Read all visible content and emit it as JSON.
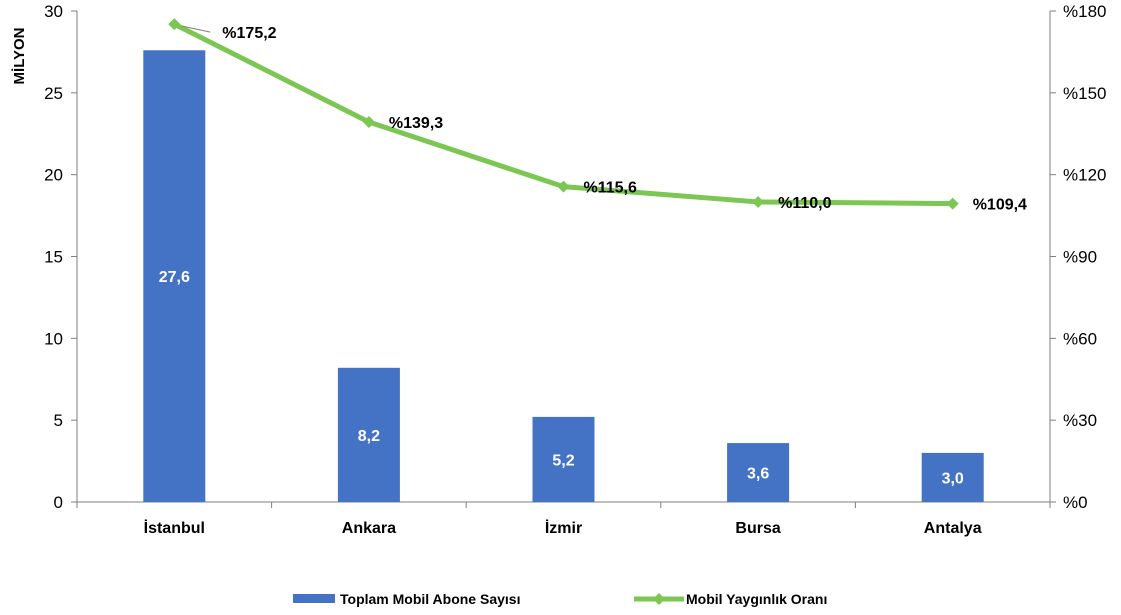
{
  "chart_data": {
    "type": "bar",
    "title": "",
    "xlabel": "",
    "ylabel": "MİLYON",
    "ylabel_right": "",
    "categories": [
      "İstanbul",
      "Ankara",
      "İzmir",
      "Bursa",
      "Antalya"
    ],
    "ylim": [
      0,
      30
    ],
    "y2lim": [
      0,
      180
    ],
    "yticks": [
      "0",
      "5",
      "10",
      "15",
      "20",
      "25",
      "30"
    ],
    "y2ticks": [
      "%0",
      "%30",
      "%60",
      "%90",
      "%120",
      "%150",
      "%180"
    ],
    "grid": false,
    "legend_position": "bottom-center",
    "series": [
      {
        "name": "Toplam Mobil Abone Sayısı",
        "type": "bar",
        "axis": "left",
        "color": "#4472C4",
        "values": [
          27.6,
          8.2,
          5.2,
          3.6,
          3.0
        ],
        "labels": [
          "27,6",
          "8,2",
          "5,2",
          "3,6",
          "3,0"
        ]
      },
      {
        "name": "Mobil Yaygınlık Oranı",
        "type": "line",
        "axis": "right",
        "color": "#7CC653",
        "values": [
          175.2,
          139.3,
          115.6,
          110.0,
          109.4
        ],
        "labels": [
          "%175,2",
          "%139,3",
          "%115,6",
          "%110,0",
          "%109,4"
        ]
      }
    ]
  }
}
